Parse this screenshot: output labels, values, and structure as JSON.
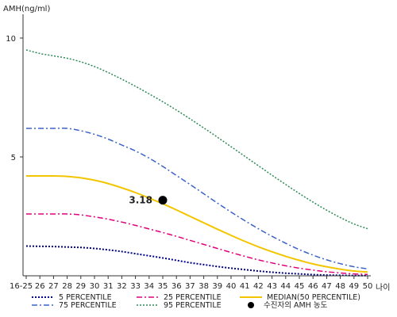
{
  "chart_data": {
    "type": "line",
    "ylabel": "AMH(ng/ml)",
    "xlabel": "나이",
    "ylim": [
      0,
      11
    ],
    "yticks": [
      5,
      10
    ],
    "x_labels": [
      "16-25",
      "26",
      "27",
      "28",
      "29",
      "30",
      "31",
      "32",
      "33",
      "34",
      "35",
      "36",
      "37",
      "38",
      "39",
      "40",
      "41",
      "42",
      "43",
      "44",
      "45",
      "46",
      "47",
      "48",
      "49",
      "50"
    ],
    "series": [
      {
        "name": "5 PERCENTILE",
        "color": "#00008b",
        "dash": "2,2",
        "width": 2,
        "values": [
          1.25,
          1.24,
          1.23,
          1.21,
          1.19,
          1.15,
          1.09,
          1.02,
          0.93,
          0.84,
          0.75,
          0.65,
          0.55,
          0.47,
          0.39,
          0.32,
          0.26,
          0.2,
          0.15,
          0.11,
          0.08,
          0.05,
          0.03,
          0.02,
          0.01,
          0.01
        ]
      },
      {
        "name": "25 PERCENTILE",
        "color": "#e0007a",
        "dash": "7,3,2,3",
        "width": 1.5,
        "values": [
          2.6,
          2.6,
          2.6,
          2.6,
          2.56,
          2.48,
          2.38,
          2.26,
          2.12,
          1.97,
          1.82,
          1.66,
          1.49,
          1.32,
          1.15,
          0.98,
          0.82,
          0.67,
          0.54,
          0.42,
          0.32,
          0.24,
          0.17,
          0.12,
          0.08,
          0.06
        ]
      },
      {
        "name": "MEDIAN(50 PERCENTILE)",
        "color": "#f2c500",
        "dash": "",
        "width": 2,
        "values": [
          4.2,
          4.2,
          4.2,
          4.18,
          4.12,
          4.02,
          3.88,
          3.7,
          3.5,
          3.27,
          3.03,
          2.77,
          2.5,
          2.23,
          1.96,
          1.7,
          1.45,
          1.22,
          1.01,
          0.82,
          0.65,
          0.5,
          0.38,
          0.28,
          0.2,
          0.16
        ]
      },
      {
        "name": "75 PERCENTILE",
        "color": "#3a62c8",
        "dash": "7,3,2,3",
        "width": 1.5,
        "values": [
          6.2,
          6.2,
          6.2,
          6.2,
          6.1,
          5.95,
          5.75,
          5.5,
          5.25,
          4.95,
          4.6,
          4.22,
          3.84,
          3.45,
          3.06,
          2.68,
          2.32,
          1.98,
          1.66,
          1.37,
          1.1,
          0.87,
          0.67,
          0.51,
          0.38,
          0.29
        ]
      },
      {
        "name": "95 PERCENTILE",
        "color": "#2e8b57",
        "dash": "2,2",
        "width": 1.5,
        "values": [
          9.5,
          9.35,
          9.25,
          9.15,
          9.0,
          8.8,
          8.55,
          8.27,
          7.97,
          7.65,
          7.32,
          6.97,
          6.6,
          6.22,
          5.83,
          5.43,
          5.03,
          4.63,
          4.23,
          3.84,
          3.46,
          3.1,
          2.76,
          2.45,
          2.18,
          1.98
        ]
      }
    ],
    "marker": {
      "label": "수진자의 AMH 농도",
      "x": "35",
      "y": 3.18,
      "text": "3.18",
      "color": "#000000"
    },
    "grid": false,
    "legend_position": "bottom"
  }
}
